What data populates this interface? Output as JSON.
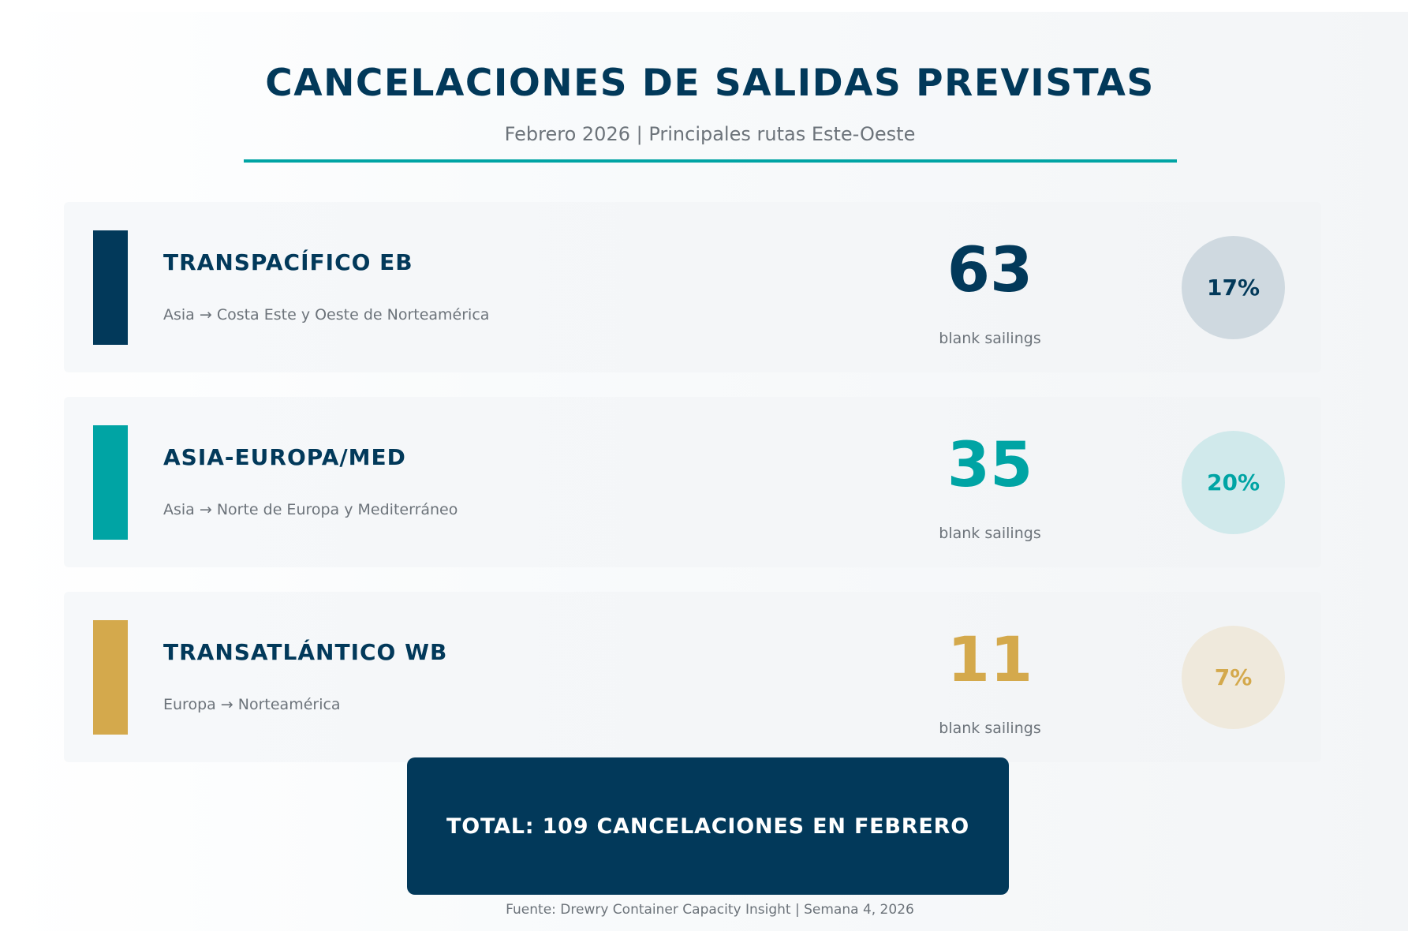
{
  "header": {
    "title": "CANCELACIONES DE SALIDAS PREVISTAS",
    "subtitle": "Febrero 2026 | Principales rutas Este-Oeste"
  },
  "colors": {
    "navy": "#02395a",
    "teal": "#00a4a4",
    "gold": "#d4a94c",
    "muted_text": "#6c737a"
  },
  "chart_data": {
    "type": "table",
    "title": "CANCELACIONES DE SALIDAS PREVISTAS",
    "subtitle": "Febrero 2026 | Principales rutas Este-Oeste",
    "unit": "blank sailings",
    "rows": [
      {
        "route": "TRANSPACÍFICO EB",
        "description": "Asia → Costa Este y Oeste de Norteamérica",
        "blank_sailings": 63,
        "count_label": "63",
        "share_label": "17%",
        "color": "#02395a",
        "circle_bg": "#cfd9e0"
      },
      {
        "route": "ASIA-EUROPA/MED",
        "description": "Asia → Norte de Europa y Mediterráneo",
        "blank_sailings": 35,
        "count_label": "35",
        "share_label": "20%",
        "color": "#00a4a4",
        "circle_bg": "#d0e9eb"
      },
      {
        "route": "TRANSATLÁNTICO WB",
        "description": "Europa → Norteamérica",
        "blank_sailings": 11,
        "count_label": "11",
        "share_label": "7%",
        "color": "#d4a94c",
        "circle_bg": "#efe9dc"
      }
    ],
    "total_label": "TOTAL: 109 CANCELACIONES EN FEBRERO",
    "source": "Fuente: Drewry Container Capacity Insight | Semana 4, 2026"
  }
}
